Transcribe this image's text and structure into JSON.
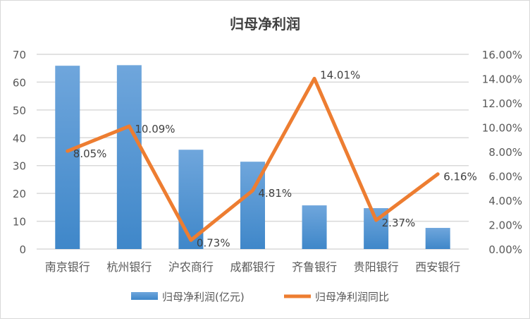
{
  "chart_data": {
    "type": "bar+line",
    "title": "归母净利润",
    "categories": [
      "南京银行",
      "杭州银行",
      "沪农商行",
      "成都银行",
      "齐鲁银行",
      "贵阳银行",
      "西安银行"
    ],
    "series": [
      {
        "name": "归母净利润(亿元)",
        "type": "bar",
        "axis": "left",
        "values": [
          65.9,
          66.1,
          35.7,
          31.4,
          15.7,
          14.7,
          7.6
        ]
      },
      {
        "name": "归母净利润同比",
        "type": "line",
        "axis": "right",
        "values": [
          8.05,
          10.09,
          0.73,
          4.81,
          14.01,
          2.37,
          6.16
        ],
        "labels": [
          "8.05%",
          "10.09%",
          "0.73%",
          "4.81%",
          "14.01%",
          "2.37%",
          "6.16%"
        ]
      }
    ],
    "ylim": [
      0,
      70
    ],
    "yticks": [
      "0",
      "10",
      "20",
      "30",
      "40",
      "50",
      "60",
      "70"
    ],
    "y2lim": [
      0,
      16
    ],
    "y2ticks": [
      "0.00%",
      "2.00%",
      "4.00%",
      "6.00%",
      "8.00%",
      "10.00%",
      "12.00%",
      "14.00%",
      "16.00%"
    ],
    "grid": true,
    "legend": "bottom",
    "colors": {
      "bar_top": "#6fa6dc",
      "bar_bottom": "#3f87c9",
      "line": "#ed7d31",
      "grid": "#d9d9d9",
      "text": "#595959"
    }
  }
}
